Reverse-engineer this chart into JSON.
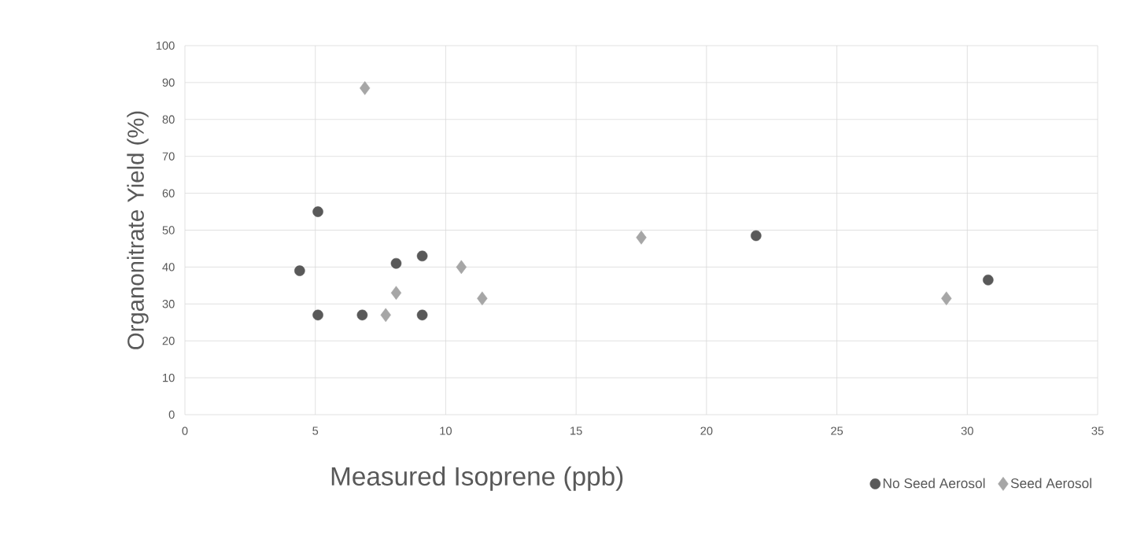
{
  "chart_data": {
    "type": "scatter",
    "xlabel": "Measured Isoprene (ppb)",
    "ylabel": "Organonitrate Yield (%)",
    "xlim": [
      0,
      35
    ],
    "xticks": [
      0,
      5,
      10,
      15,
      20,
      25,
      30,
      35
    ],
    "ylim": [
      0,
      100
    ],
    "yticks": [
      0,
      10,
      20,
      30,
      40,
      50,
      60,
      70,
      80,
      90,
      100
    ],
    "grid": true,
    "legend": "bottom right",
    "series": [
      {
        "name": "No Seed Aerosol",
        "color": "#595959",
        "marker": "circle",
        "x": [
          4.4,
          5.1,
          5.1,
          6.8,
          8.1,
          9.1,
          9.1,
          21.9,
          30.8
        ],
        "values": [
          39,
          55,
          27,
          27,
          41,
          43,
          27,
          48.5,
          36.5
        ]
      },
      {
        "name": "Seed Aerosol",
        "color": "#a6a6a6",
        "marker": "diamond",
        "x": [
          6.9,
          7.7,
          8.1,
          10.6,
          11.4,
          17.5,
          29.2
        ],
        "values": [
          88.5,
          27,
          33,
          40,
          31.5,
          48,
          31.5
        ]
      }
    ]
  }
}
